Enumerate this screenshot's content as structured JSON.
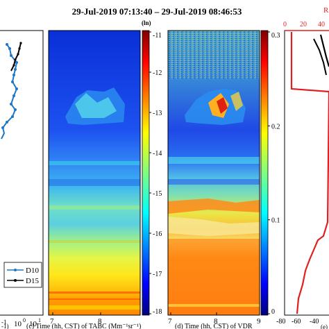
{
  "title": "29-Jul-2019 07:13:40 – 29-Jul-2019 08:46:53",
  "panel_left": {
    "legend": [
      {
        "name": "D10",
        "color": "#1f77c4"
      },
      {
        "name": "D15",
        "color": "#000000"
      }
    ],
    "x_ticks": [
      "-1",
      "10",
      "0",
      "10",
      "1"
    ],
    "x_label_tail": "-1)"
  },
  "panel_c": {
    "xlabel": "(c) Time (hh, CST) of TABC (Mm⁻¹sr⁻¹)",
    "x_ticks": [
      "7",
      "8"
    ],
    "colorbar": {
      "unit": "(ln)",
      "ticks": [
        "-11",
        "-12",
        "-13",
        "-14",
        "-15",
        "-16",
        "-17",
        "-18"
      ],
      "range": [
        -18,
        -11
      ]
    }
  },
  "panel_d": {
    "xlabel": "(d) Time (hh, CST) of VDR",
    "x_ticks": [
      "7",
      "8",
      "9"
    ],
    "colorbar": {
      "ticks": [
        "0.3",
        "0.2",
        "0.1",
        "0"
      ],
      "range": [
        0,
        0.3
      ]
    }
  },
  "panel_e": {
    "label": "(e)",
    "top_axis_label": "R",
    "top_ticks": [
      "0",
      "20",
      "40"
    ],
    "bottom_ticks": [
      "-80",
      "-60",
      "-40"
    ],
    "colors": {
      "red": "#e02020",
      "black": "#000000"
    }
  },
  "colors": {
    "jet": [
      "#00007f",
      "#0000ff",
      "#007fff",
      "#00ffff",
      "#7fff7f",
      "#ffff00",
      "#ff7f00",
      "#ff0000",
      "#7f0000"
    ]
  }
}
